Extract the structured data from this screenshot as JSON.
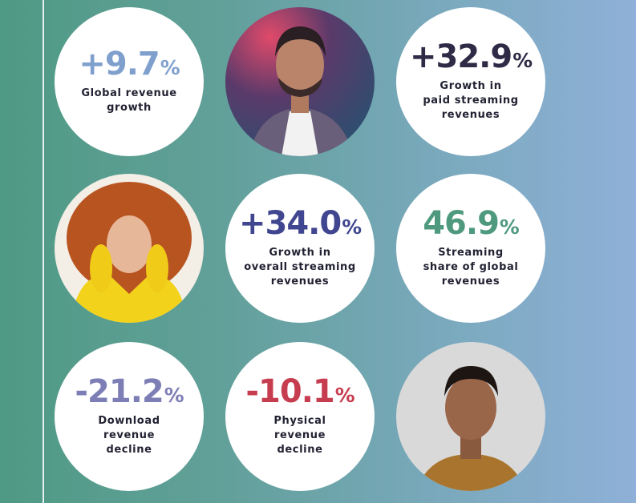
{
  "colors": {
    "blue": "#7f9fcd",
    "dark_purple": "#2f2a45",
    "indigo": "#40468f",
    "green": "#4f9a7f",
    "lavender": "#7d7eb5",
    "red": "#c63d4f",
    "background_start": "#4f9a84",
    "background_end": "#8fb0d8"
  },
  "stats": [
    {
      "value": "+9.7",
      "unit": "%",
      "label": "Global revenue\ngrowth",
      "color": "#7f9fcd"
    },
    {
      "value": "+32.9",
      "unit": "%",
      "label": "Growth in\npaid streaming\nrevenues",
      "color": "#2f2a45"
    },
    {
      "value": "+34.0",
      "unit": "%",
      "label": "Growth in\noverall streaming\nrevenues",
      "color": "#40468f"
    },
    {
      "value": "46.9",
      "unit": "%",
      "label": "Streaming\nshare of global\nrevenues",
      "color": "#4f9a7f"
    },
    {
      "value": "-21.2",
      "unit": "%",
      "label": "Download\nrevenue\ndecline",
      "color": "#7d7eb5"
    },
    {
      "value": "-10.1",
      "unit": "%",
      "label": "Physical\nrevenue\ndecline",
      "color": "#c63d4f"
    }
  ],
  "photos": [
    {
      "name": "artist-photo-man-studded-jacket"
    },
    {
      "name": "artist-photo-woman-curly-hair-yellow"
    },
    {
      "name": "artist-photo-man-portrait"
    }
  ]
}
